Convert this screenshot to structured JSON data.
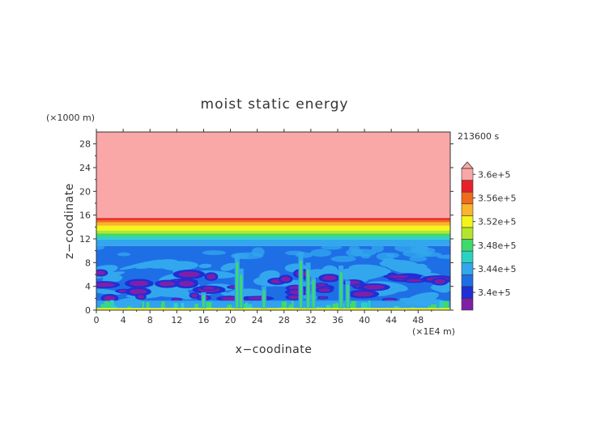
{
  "chart_data": {
    "type": "heatmap",
    "title": "moist static energy",
    "xlabel": "x−coodinate",
    "ylabel": "z−coodinate",
    "x_unit": "(×1E4 m)",
    "y_unit": "(×1000 m)",
    "time_label": "213600 s",
    "xlim": [
      0,
      52.8
    ],
    "ylim": [
      0,
      30
    ],
    "x_ticks": [
      0,
      4,
      8,
      12,
      16,
      20,
      24,
      28,
      32,
      36,
      40,
      44,
      48
    ],
    "x_tick_labels": [
      "0",
      "4",
      "8",
      "12",
      "16",
      "20",
      "24",
      "28",
      "32",
      "36",
      "40",
      "44",
      "48"
    ],
    "y_ticks": [
      0,
      4,
      8,
      12,
      16,
      20,
      24,
      28
    ],
    "y_tick_labels": [
      "0",
      "4",
      "8",
      "12",
      "16",
      "20",
      "24",
      "28"
    ],
    "grid": false,
    "colorbar": {
      "levels": [
        338000.0,
        340000.0,
        342000.0,
        344000.0,
        346000.0,
        348000.0,
        350000.0,
        352000.0,
        354000.0,
        356000.0,
        358000.0,
        360000.0
      ],
      "colors": [
        "#7f1fa8",
        "#1e2fd6",
        "#1e6fe6",
        "#33a7ee",
        "#2ad2c4",
        "#3fd96c",
        "#b4e52c",
        "#f4f41c",
        "#fab32a",
        "#f26a1c",
        "#e8202a",
        "#f9a7a7"
      ],
      "tick_labels": [
        "3.4e+5",
        "3.44e+5",
        "3.48e+5",
        "3.52e+5",
        "3.56e+5",
        "3.6e+5"
      ],
      "tick_levels": [
        340000.0,
        344000.0,
        348000.0,
        352000.0,
        356000.0,
        360000.0
      ],
      "extend": "max"
    },
    "layers": [
      {
        "z_range": [
          15.5,
          30.0
        ],
        "value_range": "> 3.60e+5",
        "color": "#f9a7a7"
      },
      {
        "z_range": [
          15.2,
          15.5
        ],
        "value_range": "3.58e+5 – 3.60e+5",
        "color": "#e8202a"
      },
      {
        "z_range": [
          14.8,
          15.2
        ],
        "value_range": "3.56e+5 – 3.58e+5",
        "color": "#f26a1c"
      },
      {
        "z_range": [
          14.2,
          14.8
        ],
        "value_range": "3.54e+5 – 3.56e+5",
        "color": "#fab32a"
      },
      {
        "z_range": [
          13.4,
          14.2
        ],
        "value_range": "3.52e+5 – 3.54e+5",
        "color": "#f4f41c"
      },
      {
        "z_range": [
          12.9,
          13.4
        ],
        "value_range": "3.50e+5 – 3.52e+5",
        "color": "#b4e52c"
      },
      {
        "z_range": [
          12.4,
          12.9
        ],
        "value_range": "3.48e+5 – 3.50e+5",
        "color": "#3fd96c"
      },
      {
        "z_range": [
          11.9,
          12.4
        ],
        "value_range": "3.46e+5 – 3.48e+5",
        "color": "#2ad2c4"
      },
      {
        "z_range": [
          10.8,
          11.9
        ],
        "value_range": "3.44e+5 – 3.46e+5",
        "color": "#33a7ee"
      },
      {
        "z_range": [
          0.0,
          10.8
        ],
        "value_range": "3.42e+5 – 3.44e+5",
        "color": "#1e6fe6"
      }
    ],
    "notes": "Below ~8 km the field is turbulent: patches of 3.38e+5–3.42e+5 (purple/blue) between ~1–6 km, lighter blue 3.44e+5–3.46e+5 filaments, and green/yellow plumes rising from the surface near x ≈ 21, 30–32 and 36–38."
  }
}
